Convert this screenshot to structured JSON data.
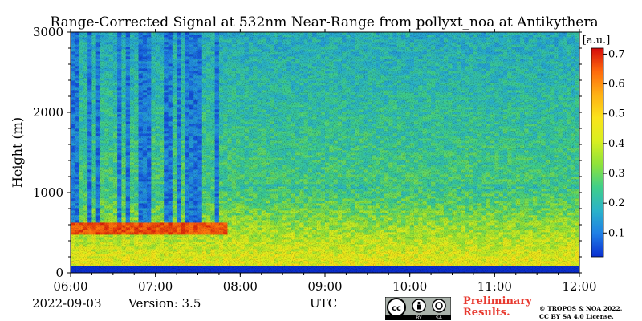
{
  "chart_data": {
    "type": "heatmap",
    "title": "Range-Corrected Signal at 532nm Near-Range from pollyxt_noa at Antikythera",
    "ylabel": "Height (m)",
    "xlabel": "UTC",
    "x_ticks": [
      "06:00",
      "07:00",
      "08:00",
      "09:00",
      "10:00",
      "11:00",
      "12:00"
    ],
    "y_ticks": [
      "0",
      "1000",
      "2000",
      "3000"
    ],
    "ylim": [
      0,
      3000
    ],
    "xlim": [
      "06:00",
      "12:00"
    ],
    "colorbar": {
      "unit": "[a.u.]",
      "ticks": [
        "0.1",
        "0.2",
        "0.3",
        "0.4",
        "0.5",
        "0.6",
        "0.7"
      ],
      "range": [
        0.02,
        0.72
      ],
      "colors": [
        "#0b2fd0",
        "#1f7fe6",
        "#2ab3c9",
        "#3fcf8a",
        "#8fe33a",
        "#d9ef1f",
        "#fbe31a",
        "#ffb014",
        "#ff6a0c",
        "#d40b0b"
      ]
    },
    "features": [
      {
        "name": "boundary layer",
        "time_from": "06:00",
        "time_to": "12:00",
        "height_from": 80,
        "height_to": 1100,
        "level": 0.45
      },
      {
        "name": "cloud layer",
        "time_from": "06:00",
        "time_to": "07:50",
        "height_from": 480,
        "height_to": 620,
        "level": 0.7
      },
      {
        "name": "above-cloud attenuation",
        "time_from": "06:00",
        "time_to": "07:50",
        "height_from": 620,
        "height_to": 3000,
        "level": 0.05
      }
    ]
  },
  "footer": {
    "date": "2022-09-03",
    "version": "Version: 3.5",
    "preliminary_line1": "Preliminary",
    "preliminary_line2": "Results.",
    "copyright_line1": "© TROPOS & NOA 2022.",
    "copyright_line2": "CC BY SA 4.0 License.",
    "cc_by": "BY",
    "cc_sa": "SA"
  }
}
